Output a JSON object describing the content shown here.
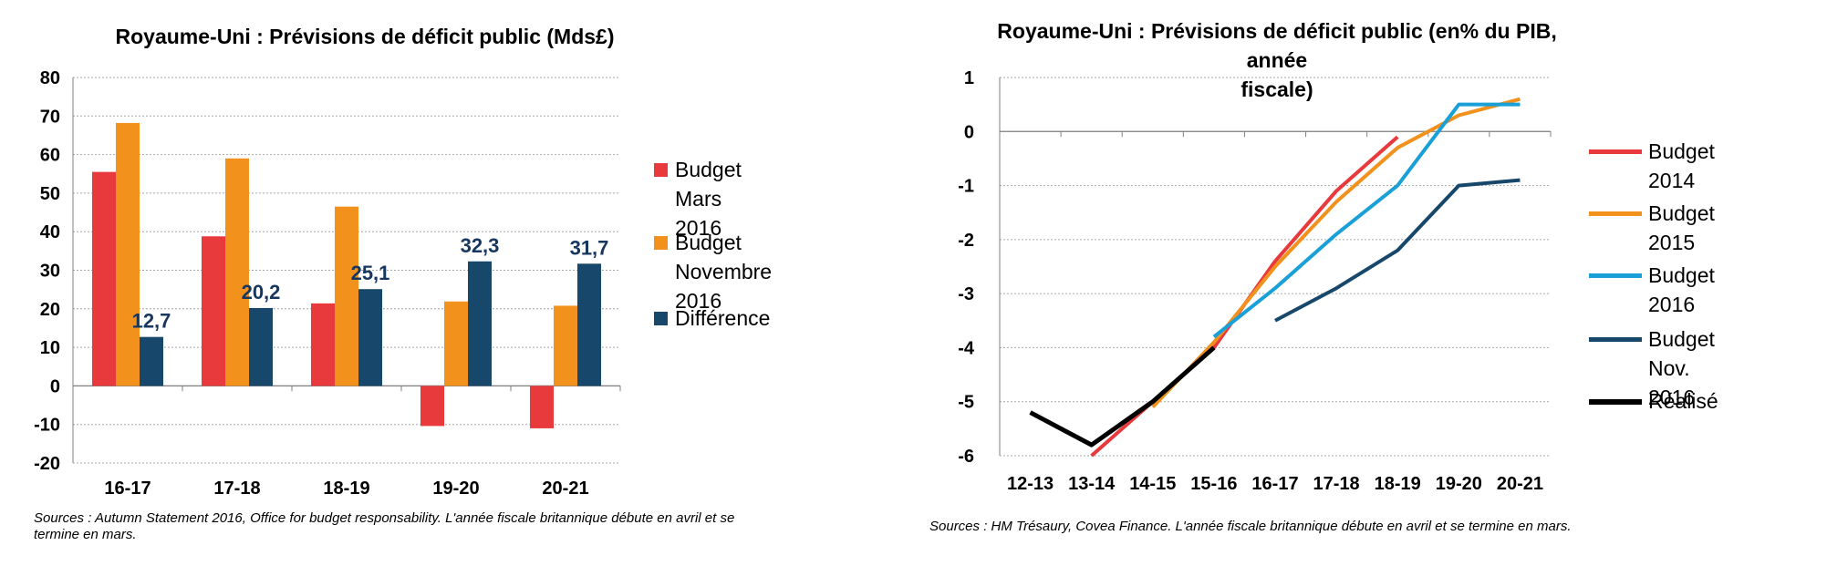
{
  "colors": {
    "mars2016": "#e8393c",
    "nov2016": "#f2921d",
    "difference": "#17486b",
    "b2014": "#e8393c",
    "b2015": "#f2921d",
    "b2016": "#1aa0d8",
    "bnov2016": "#17486b",
    "realise": "#000000",
    "datalabel": "#17375e",
    "grid": "#a6a6a6"
  },
  "left": {
    "title": "Royaume-Uni : Prévisions de déficit public (Mds£)",
    "legend": [
      {
        "label": "Budget Mars 2016",
        "line1": "Budget Mars",
        "line2": "2016",
        "color_key": "mars2016"
      },
      {
        "label": "Budget Novembre 2016",
        "line1": "Budget",
        "line2": "Novembre 2016",
        "color_key": "nov2016"
      },
      {
        "label": "Différence",
        "line1": "Différence",
        "line2": "",
        "color_key": "difference"
      }
    ],
    "source_line1": "Sources : Autumn Statement 2016, Office  for budget responsability. L'année fiscale britannique débute en avril et se",
    "source_line2": "termine en mars."
  },
  "right": {
    "title_line1": "Royaume-Uni : Prévisions de déficit public (en% du PIB, année",
    "title_line2": "fiscale)",
    "legend": [
      {
        "label": "Budget 2014",
        "line1": "Budget 2014",
        "line2": "",
        "color_key": "b2014"
      },
      {
        "label": "Budget 2015",
        "line1": "Budget 2015",
        "line2": "",
        "color_key": "b2015"
      },
      {
        "label": "Budget 2016",
        "line1": "Budget 2016",
        "line2": "",
        "color_key": "b2016"
      },
      {
        "label": "Budget Nov. 2016",
        "line1": "Budget Nov.",
        "line2": "2016",
        "color_key": "bnov2016"
      },
      {
        "label": "Réalisé",
        "line1": "Réalisé",
        "line2": "",
        "color_key": "realise"
      }
    ],
    "source": "Sources : HM Trésaury, Covea Finance. L'année fiscale britannique débute en avril et se termine en mars."
  },
  "chart_data": [
    {
      "type": "bar",
      "title": "Royaume-Uni : Prévisions de déficit public (Mds£)",
      "categories": [
        "16-17",
        "17-18",
        "18-19",
        "19-20",
        "20-21"
      ],
      "series": [
        {
          "name": "Budget Mars 2016",
          "values": [
            55.5,
            38.8,
            21.4,
            -10.4,
            -11.0
          ]
        },
        {
          "name": "Budget Novembre 2016",
          "values": [
            68.2,
            59.0,
            46.5,
            21.9,
            20.8
          ]
        },
        {
          "name": "Différence",
          "values": [
            12.7,
            20.2,
            25.1,
            32.3,
            31.7
          ],
          "labels": [
            "12,7",
            "20,2",
            "25,1",
            "32,3",
            "31,7"
          ]
        }
      ],
      "ylim": [
        -20,
        80
      ],
      "yticks": [
        -20,
        -10,
        0,
        10,
        20,
        30,
        40,
        50,
        60,
        70,
        80
      ],
      "grid": true,
      "legend": "right",
      "xlabel": "",
      "ylabel": ""
    },
    {
      "type": "line",
      "title": "Royaume-Uni : Prévisions de déficit public (en% du PIB, année fiscale)",
      "categories": [
        "12-13",
        "13-14",
        "14-15",
        "15-16",
        "16-17",
        "17-18",
        "18-19",
        "19-20",
        "20-21"
      ],
      "series": [
        {
          "name": "Budget 2014",
          "values": [
            null,
            -6.0,
            -5.0,
            -4.0,
            -2.4,
            -1.1,
            -0.1,
            null,
            null
          ]
        },
        {
          "name": "Budget 2015",
          "values": [
            null,
            null,
            -5.1,
            -3.9,
            -2.5,
            -1.3,
            -0.3,
            0.3,
            0.6
          ]
        },
        {
          "name": "Budget 2016",
          "values": [
            null,
            null,
            null,
            -3.8,
            -2.9,
            -1.9,
            -1.0,
            0.5,
            0.5
          ]
        },
        {
          "name": "Budget Nov. 2016",
          "values": [
            null,
            null,
            null,
            null,
            -3.5,
            -2.9,
            -2.2,
            -1.0,
            -0.9
          ]
        },
        {
          "name": "Réalisé",
          "values": [
            -5.2,
            -5.8,
            -5.0,
            -4.0,
            null,
            null,
            null,
            null,
            null
          ]
        }
      ],
      "ylim": [
        -6,
        1
      ],
      "yticks": [
        -6,
        -5,
        -4,
        -3,
        -2,
        -1,
        0,
        1
      ],
      "grid": true,
      "legend": "right",
      "xlabel": "",
      "ylabel": ""
    }
  ]
}
